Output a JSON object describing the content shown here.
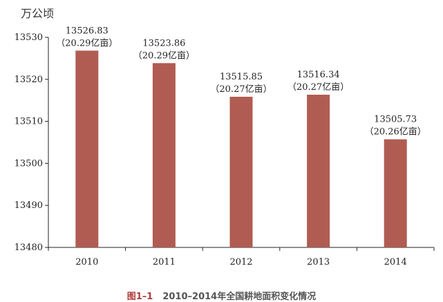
{
  "page": {
    "unit_label": "万公顷",
    "caption_number": "图1–1",
    "caption_title": "2010–2014年全国耕地面积变化情况"
  },
  "chart_data": {
    "type": "bar",
    "categories": [
      "2010",
      "2011",
      "2012",
      "2013",
      "2014"
    ],
    "values": [
      13526.83,
      13523.86,
      13515.85,
      13516.34,
      13505.73
    ],
    "data_labels": [
      [
        "13526.83",
        "（20.29亿亩）"
      ],
      [
        "13523.86",
        "（20.29亿亩）"
      ],
      [
        "13515.85",
        "（20.27亿亩）"
      ],
      [
        "13516.34",
        "（20.27亿亩）"
      ],
      [
        "13505.73",
        "（20.26亿亩）"
      ]
    ],
    "ylabel": "万公顷",
    "ylim": [
      13480,
      13530
    ],
    "yticks": [
      13480,
      13490,
      13500,
      13510,
      13520,
      13530
    ],
    "grid": false,
    "bar_color": "#b05c52"
  }
}
